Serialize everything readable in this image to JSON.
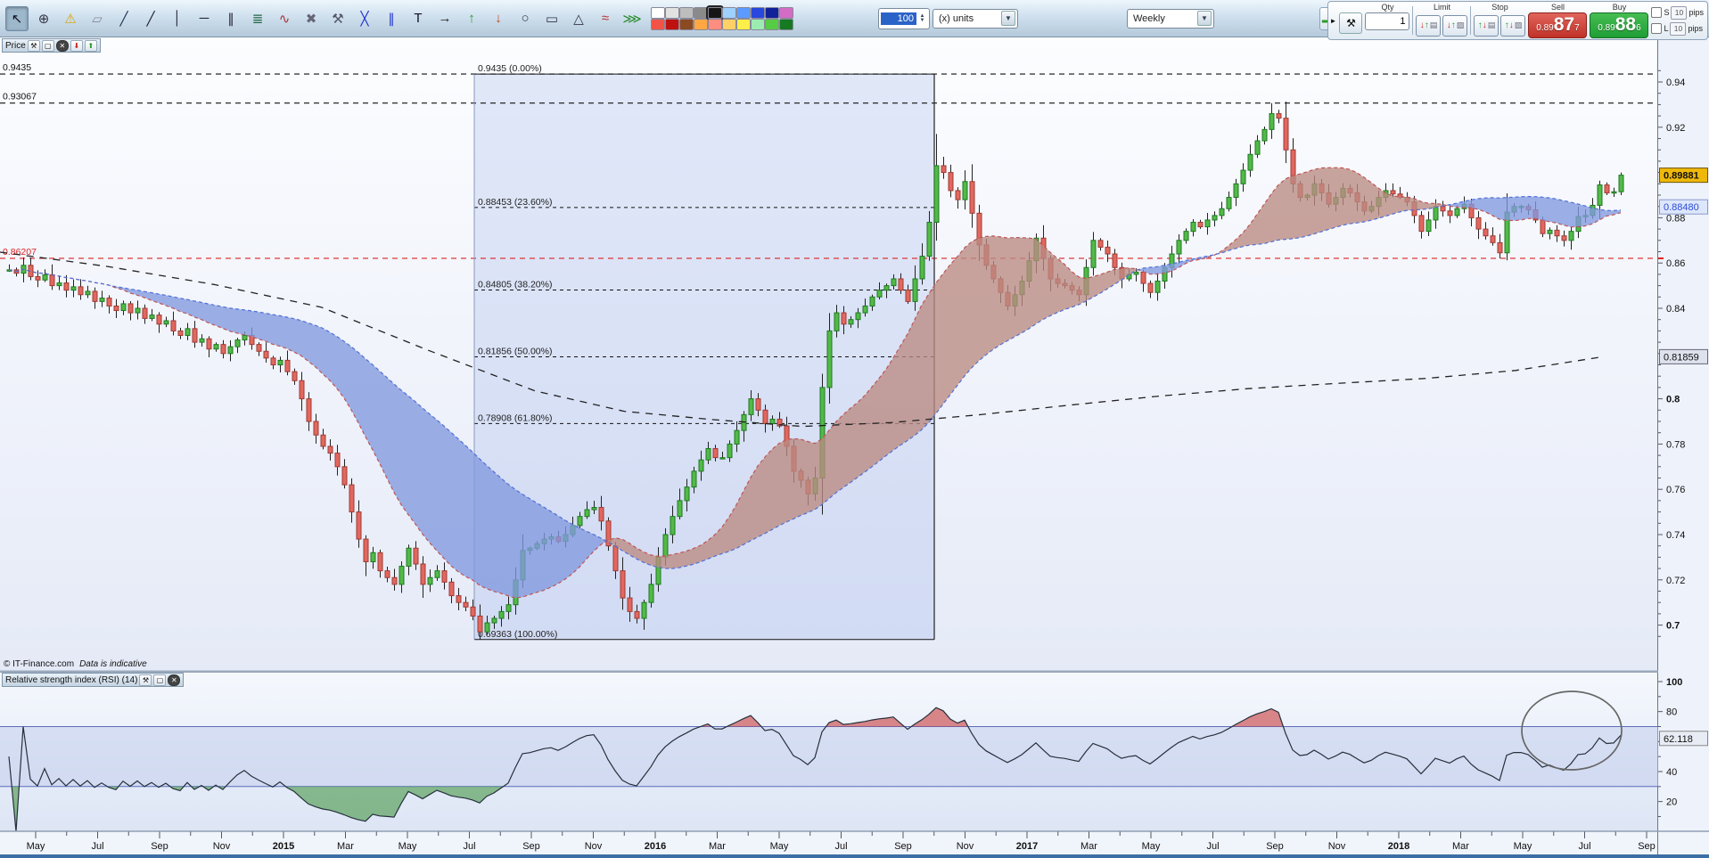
{
  "toolbar": {
    "tools": [
      {
        "name": "cursor-tool-icon",
        "glyph": "↖",
        "color": "#112",
        "selected": true
      },
      {
        "name": "zoom-tool-icon",
        "glyph": "⊕",
        "color": "#334"
      },
      {
        "name": "alerts-icon",
        "glyph": "⚠",
        "color": "#d8a400"
      },
      {
        "name": "ruler-icon",
        "glyph": "▱",
        "color": "#889"
      },
      {
        "name": "segment-tool-icon",
        "glyph": "╱",
        "color": "#235"
      },
      {
        "name": "trendline-tool-icon",
        "glyph": "╱",
        "color": "#223"
      },
      {
        "name": "vertical-line-tool-icon",
        "glyph": "│",
        "color": "#223"
      },
      {
        "name": "horizontal-line-tool-icon",
        "glyph": "─",
        "color": "#223"
      },
      {
        "name": "channel-tool-icon",
        "glyph": "∥",
        "color": "#223"
      },
      {
        "name": "fib-retracement-tool-icon",
        "glyph": "≣",
        "color": "#264"
      },
      {
        "name": "regression-tool-icon",
        "glyph": "∿",
        "color": "#a33"
      },
      {
        "name": "delete-drawings-icon",
        "glyph": "✖",
        "color": "#667"
      },
      {
        "name": "drawing-settings-icon",
        "glyph": "⚒",
        "color": "#556"
      },
      {
        "name": "cross-lines-tool-icon",
        "glyph": "╳",
        "color": "#23c"
      },
      {
        "name": "parallel-lines-tool-icon",
        "glyph": "∥",
        "color": "#23c"
      },
      {
        "name": "text-tool-icon",
        "glyph": "T",
        "color": "#112"
      },
      {
        "name": "arrow-right-tool-icon",
        "glyph": "→",
        "color": "#222"
      },
      {
        "name": "arrow-up-tool-icon",
        "glyph": "↑",
        "color": "#2a9a2a"
      },
      {
        "name": "arrow-down-tool-icon",
        "glyph": "↓",
        "color": "#c42"
      },
      {
        "name": "ellipse-tool-icon",
        "glyph": "○",
        "color": "#334"
      },
      {
        "name": "rectangle-tool-icon",
        "glyph": "▭",
        "color": "#334"
      },
      {
        "name": "triangle-tool-icon",
        "glyph": "△",
        "color": "#334"
      },
      {
        "name": "zigzag-pattern-tool-icon",
        "glyph": "≈",
        "color": "#b33"
      },
      {
        "name": "wedge-pattern-tool-icon",
        "glyph": "⋙",
        "color": "#2a8a2a"
      }
    ],
    "swatches": [
      "#ffffff",
      "#e2e2e2",
      "#bdbdbd",
      "#8a8a8a",
      "#161616",
      "#9fd1ff",
      "#5b9bff",
      "#2747dd",
      "#12209a",
      "#d46cc6",
      "#f25347",
      "#c01111",
      "#8a4a22",
      "#ffa843",
      "#ff8d80",
      "#ffd066",
      "#fdee49",
      "#9cecb2",
      "#55cc44",
      "#167a22"
    ],
    "qty": {
      "value": "100"
    },
    "units": {
      "value": "(x) units"
    },
    "timeframe": {
      "value": "Weekly"
    }
  },
  "dealing": {
    "qty_label": "Qty",
    "qty_value": "1",
    "limit_label": "Limit",
    "stop_label": "Stop",
    "sell_label": "Sell",
    "buy_label": "Buy",
    "sell": {
      "prefix": "0.89",
      "big": "87",
      "sup": "7"
    },
    "buy": {
      "prefix": "0.89",
      "big": "88",
      "sup": "6"
    },
    "s_label": "S",
    "l_label": "L",
    "s_pips": "10",
    "l_pips": "10",
    "pips_text": "pips"
  },
  "price_panel": {
    "tab_label": "Price",
    "copyright": "© IT-Finance.com",
    "indicative": "Data is indicative",
    "axis_ticks": [
      {
        "text": "0.94",
        "price": 0.94
      },
      {
        "text": "0.92",
        "price": 0.92
      },
      {
        "text": "0.88",
        "price": 0.88
      },
      {
        "text": "0.86",
        "price": 0.86
      },
      {
        "text": "0.84",
        "price": 0.84
      },
      {
        "text": "0.8",
        "price": 0.8,
        "bold": true
      },
      {
        "text": "0.78",
        "price": 0.78
      },
      {
        "text": "0.76",
        "price": 0.76
      },
      {
        "text": "0.74",
        "price": 0.74
      },
      {
        "text": "0.72",
        "price": 0.72
      },
      {
        "text": "0.7",
        "price": 0.7,
        "bold": true
      }
    ],
    "last_price_box": "0.89881",
    "ma_price_box": "0.88480",
    "longterm_price_box": "0.81859",
    "levels": [
      {
        "label": "0.9435",
        "price": 0.9435,
        "color": "#111",
        "style": "dashed"
      },
      {
        "label": "0.93067",
        "price": 0.93067,
        "color": "#111",
        "style": "dashed"
      },
      {
        "label": "0.86207",
        "price": 0.86207,
        "color": "#dd2222",
        "style": "dashed"
      }
    ]
  },
  "rsi_panel": {
    "title": "Relative strength index (RSI) (14)",
    "value_box": "62.118",
    "axis_ticks": [
      {
        "text": "100",
        "value": 100,
        "bold": true
      },
      {
        "text": "80",
        "value": 80
      },
      {
        "text": "40",
        "value": 40
      },
      {
        "text": "20",
        "value": 20
      }
    ],
    "overbought": 70,
    "oversold": 30,
    "circle_annotation": true
  },
  "date_axis": {
    "labels": [
      "May",
      "Jul",
      "Sep",
      "Nov",
      "2015",
      "Mar",
      "May",
      "Jul",
      "Sep",
      "Nov",
      "2016",
      "Mar",
      "May",
      "Jul",
      "Sep",
      "Nov",
      "2017",
      "Mar",
      "May",
      "Jul",
      "Sep",
      "Nov",
      "2018",
      "Mar",
      "May",
      "Jul",
      "Sep"
    ]
  },
  "chart_data": {
    "type": "candlestick",
    "timeframe": "Weekly",
    "price_range": [
      0.69,
      0.945
    ],
    "weekly_closes": [
      0.857,
      0.8555,
      0.859,
      0.854,
      0.8525,
      0.8548,
      0.85,
      0.8512,
      0.848,
      0.8495,
      0.846,
      0.8475,
      0.843,
      0.8445,
      0.841,
      0.839,
      0.842,
      0.838,
      0.84,
      0.8355,
      0.837,
      0.833,
      0.8345,
      0.83,
      0.828,
      0.831,
      0.825,
      0.8265,
      0.822,
      0.824,
      0.82,
      0.823,
      0.826,
      0.828,
      0.824,
      0.821,
      0.818,
      0.815,
      0.817,
      0.812,
      0.808,
      0.8,
      0.79,
      0.784,
      0.779,
      0.776,
      0.77,
      0.762,
      0.75,
      0.738,
      0.728,
      0.732,
      0.724,
      0.721,
      0.718,
      0.726,
      0.734,
      0.727,
      0.718,
      0.721,
      0.724,
      0.719,
      0.713,
      0.71,
      0.708,
      0.704,
      0.697,
      0.701,
      0.703,
      0.706,
      0.709,
      0.72,
      0.733,
      0.734,
      0.736,
      0.738,
      0.739,
      0.737,
      0.74,
      0.744,
      0.748,
      0.751,
      0.752,
      0.746,
      0.735,
      0.724,
      0.712,
      0.706,
      0.703,
      0.71,
      0.718,
      0.73,
      0.74,
      0.748,
      0.755,
      0.761,
      0.768,
      0.773,
      0.778,
      0.774,
      0.774,
      0.78,
      0.786,
      0.793,
      0.8,
      0.795,
      0.789,
      0.791,
      0.788,
      0.779,
      0.768,
      0.764,
      0.758,
      0.765,
      0.805,
      0.83,
      0.838,
      0.833,
      0.835,
      0.838,
      0.841,
      0.845,
      0.848,
      0.85,
      0.853,
      0.848,
      0.843,
      0.853,
      0.863,
      0.878,
      0.903,
      0.9,
      0.892,
      0.888,
      0.896,
      0.882,
      0.868,
      0.859,
      0.853,
      0.847,
      0.841,
      0.846,
      0.852,
      0.861,
      0.871,
      0.862,
      0.853,
      0.851,
      0.85,
      0.848,
      0.846,
      0.858,
      0.87,
      0.867,
      0.864,
      0.858,
      0.853,
      0.855,
      0.856,
      0.851,
      0.847,
      0.852,
      0.858,
      0.864,
      0.87,
      0.874,
      0.878,
      0.876,
      0.879,
      0.881,
      0.884,
      0.889,
      0.895,
      0.901,
      0.908,
      0.914,
      0.919,
      0.926,
      0.924,
      0.91,
      0.895,
      0.889,
      0.89,
      0.895,
      0.891,
      0.886,
      0.889,
      0.893,
      0.891,
      0.887,
      0.883,
      0.885,
      0.889,
      0.892,
      0.8905,
      0.889,
      0.887,
      0.881,
      0.874,
      0.879,
      0.885,
      0.883,
      0.881,
      0.884,
      0.886,
      0.88,
      0.875,
      0.872,
      0.869,
      0.8645,
      0.8825,
      0.885,
      0.885,
      0.8835,
      0.879,
      0.873,
      0.8745,
      0.872,
      0.87,
      0.874,
      0.8805,
      0.881,
      0.8855,
      0.8945,
      0.891,
      0.8915,
      0.89881
    ],
    "candle_overrides": {
      "66": {
        "low": 0.69363
      },
      "130": {
        "high": 0.917
      },
      "177": {
        "high": 0.93067
      },
      "209": {
        "low": 0.86207
      },
      "226": {
        "high": 0.9
      }
    },
    "fibonacci": {
      "levels": [
        {
          "label": "0.9435 (0.00%)",
          "price": 0.9435,
          "pct": 0.0
        },
        {
          "label": "0.88453 (23.60%)",
          "price": 0.88453,
          "pct": 23.6
        },
        {
          "label": "0.84805 (38.20%)",
          "price": 0.84805,
          "pct": 38.2
        },
        {
          "label": "0.81856 (50.00%)",
          "price": 0.81856,
          "pct": 50.0
        },
        {
          "label": "0.78908 (61.80%)",
          "price": 0.78908,
          "pct": 61.8
        },
        {
          "label": "0.69363 (100.00%)",
          "price": 0.69363,
          "pct": 100.0
        }
      ]
    },
    "long_ma_path": [
      [
        0,
        0.8648
      ],
      [
        120,
        0.8585
      ],
      [
        240,
        0.8505
      ],
      [
        360,
        0.8405
      ],
      [
        480,
        0.8215
      ],
      [
        600,
        0.8035
      ],
      [
        700,
        0.7945
      ],
      [
        800,
        0.7908
      ],
      [
        900,
        0.7878
      ],
      [
        1000,
        0.7895
      ],
      [
        1100,
        0.793
      ],
      [
        1200,
        0.7972
      ],
      [
        1300,
        0.8012
      ],
      [
        1400,
        0.8045
      ],
      [
        1500,
        0.8068
      ],
      [
        1600,
        0.809
      ],
      [
        1700,
        0.8125
      ],
      [
        1798,
        0.81859
      ]
    ]
  }
}
